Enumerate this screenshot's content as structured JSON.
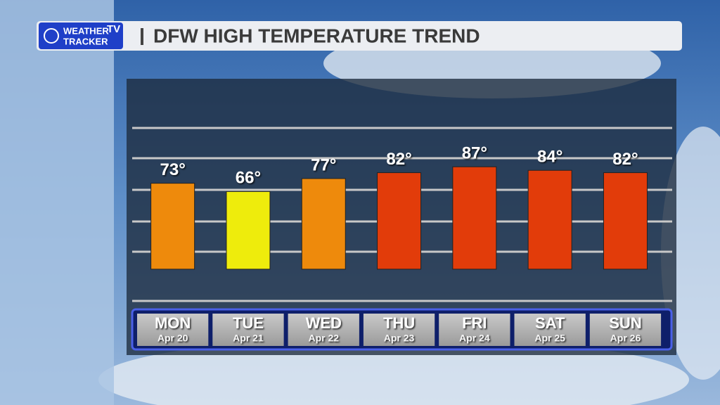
{
  "logo": {
    "line1": "WEATHER",
    "tv": "TV",
    "line2": "TRACKER"
  },
  "chart_data": {
    "type": "bar",
    "title": "DFW HIGH TEMPERATURE TREND",
    "categories": [
      "MON",
      "TUE",
      "WED",
      "THU",
      "FRI",
      "SAT",
      "SUN"
    ],
    "dates": [
      "Apr 20",
      "Apr 21",
      "Apr 22",
      "Apr 23",
      "Apr 24",
      "Apr 25",
      "Apr 26"
    ],
    "values": [
      73,
      66,
      77,
      82,
      87,
      84,
      82
    ],
    "value_labels": [
      "73°",
      "66°",
      "77°",
      "82°",
      "87°",
      "84°",
      "82°"
    ],
    "colors": [
      "#ee8a0c",
      "#eeec0c",
      "#ee8a0c",
      "#e23c0a",
      "#e23c0a",
      "#e23c0a",
      "#e23c0a"
    ],
    "ylim": [
      -24,
      120
    ]
  }
}
